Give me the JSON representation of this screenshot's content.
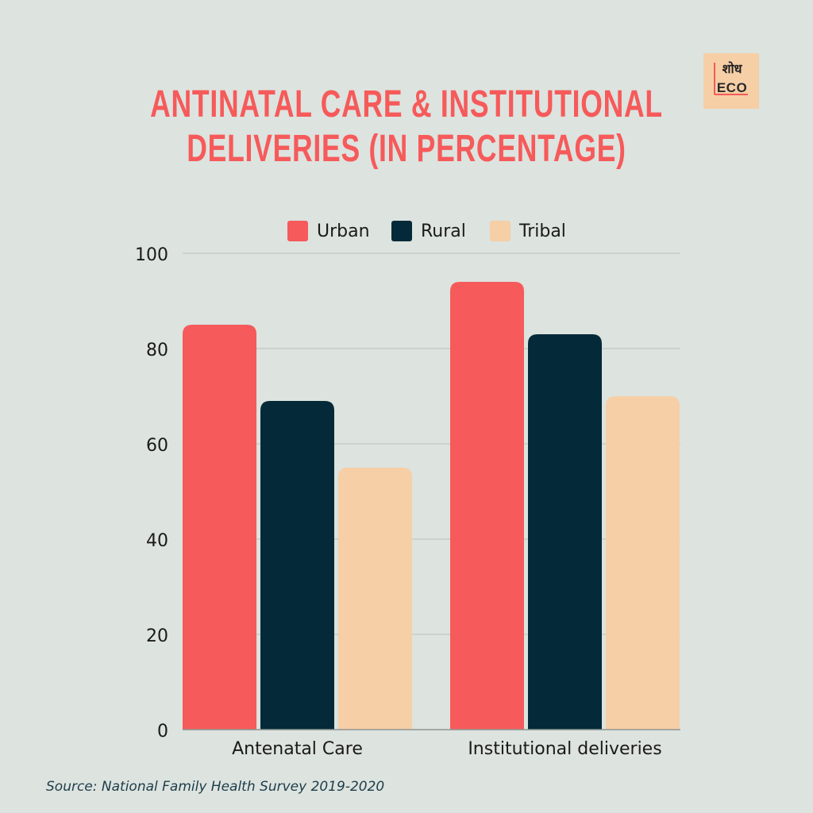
{
  "chart_data": {
    "type": "bar",
    "title": "ANTINATAL CARE & INSTITUTIONAL DELIVERIES (IN PERCENTAGE)",
    "categories": [
      "Antenatal Care",
      "Institutional deliveries"
    ],
    "series": [
      {
        "name": "Urban",
        "color": "#f65a5a",
        "values": [
          85,
          94
        ]
      },
      {
        "name": "Rural",
        "color": "#042a39",
        "values": [
          69,
          83
        ]
      },
      {
        "name": "Tribal",
        "color": "#f6cfa6",
        "values": [
          55,
          70
        ]
      }
    ],
    "ylim": [
      0,
      100
    ],
    "yticks": [
      "0",
      "20",
      "40",
      "60",
      "80",
      "100"
    ],
    "grid": true,
    "legend_position": "top"
  },
  "logo": {
    "hindi": "शोध",
    "latin": "ECO"
  },
  "source": "Source: National Family Health Survey 2019-2020"
}
